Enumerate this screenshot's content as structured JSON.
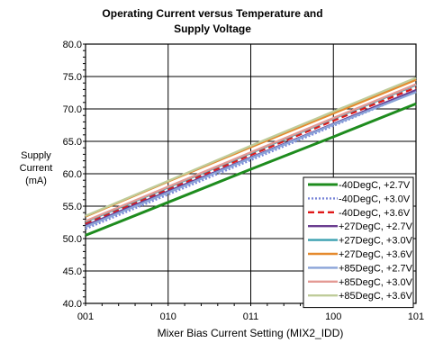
{
  "chart_data": {
    "type": "line",
    "title_lines": [
      "Operating Current versus Temperature and",
      "Supply Voltage"
    ],
    "xlabel": "Mixer Bias Current Setting (MIX2_IDD)",
    "ylabel_lines": [
      "Supply",
      "Current",
      "(mA)"
    ],
    "categories": [
      "001",
      "010",
      "011",
      "100",
      "101"
    ],
    "ylim": [
      40.0,
      80.0
    ],
    "yticks": [
      "40.0",
      "45.0",
      "50.0",
      "55.0",
      "60.0",
      "65.0",
      "70.0",
      "75.0",
      "80.0"
    ],
    "grid": true,
    "legend_position": "bottom-right",
    "series": [
      {
        "name": "-40DegC, +2.7V",
        "color": "#1e8c1e",
        "dash": "solid",
        "values": [
          50.5,
          55.6,
          60.7,
          65.7,
          70.8
        ]
      },
      {
        "name": "-40DegC, +3.0V",
        "color": "#7a86d8",
        "dash": "dotted",
        "values": [
          51.5,
          56.8,
          62.1,
          67.4,
          72.7
        ]
      },
      {
        "name": "-40DegC, +3.6V",
        "color": "#e01818",
        "dash": "dashed",
        "values": [
          52.3,
          57.6,
          62.9,
          68.2,
          73.3
        ]
      },
      {
        "name": "+27DegC, +2.7V",
        "color": "#6a3d8f",
        "dash": "solid",
        "values": [
          52.0,
          57.3,
          62.5,
          67.7,
          72.9
        ]
      },
      {
        "name": "+27DegC, +3.0V",
        "color": "#3aa0b0",
        "dash": "solid",
        "values": [
          52.6,
          57.9,
          63.2,
          68.5,
          73.7
        ]
      },
      {
        "name": "+27DegC, +3.6V",
        "color": "#e58a2e",
        "dash": "solid",
        "values": [
          53.4,
          58.8,
          64.1,
          69.3,
          74.5
        ]
      },
      {
        "name": "+85DegC, +2.7V",
        "color": "#8aa4d8",
        "dash": "solid",
        "values": [
          51.8,
          57.1,
          62.4,
          67.6,
          72.6
        ]
      },
      {
        "name": "+85DegC, +3.0V",
        "color": "#e49a94",
        "dash": "solid",
        "values": [
          52.7,
          58.0,
          63.3,
          68.6,
          73.8
        ]
      },
      {
        "name": "+85DegC, +3.6V",
        "color": "#bfcc9a",
        "dash": "solid",
        "values": [
          53.5,
          58.9,
          64.3,
          69.6,
          74.8
        ]
      }
    ]
  }
}
